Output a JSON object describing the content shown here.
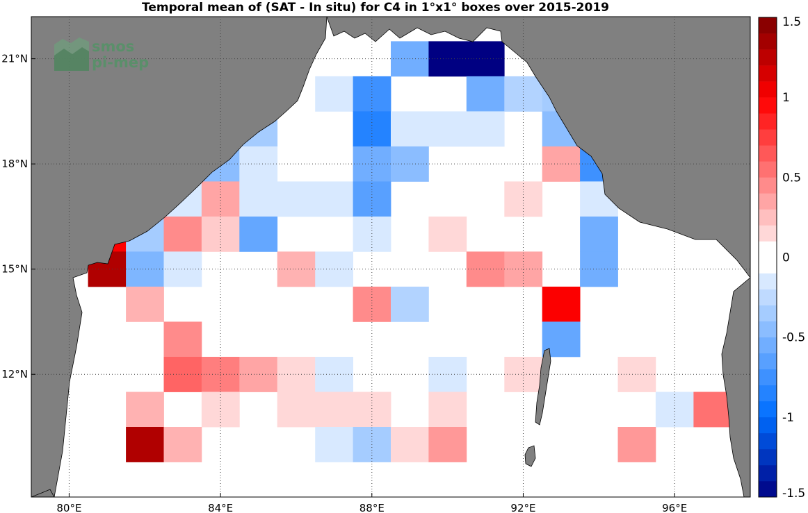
{
  "title": "Temporal mean of (SAT - In situ) for C4 in 1°x1° boxes over 2015-2019",
  "logo": {
    "line1": "smos",
    "line2": "pi-mep",
    "color": "#5a8f6a"
  },
  "colors": {
    "land": "#808080",
    "ocean": "#ffffff",
    "grid": "#444444"
  },
  "chart_data": {
    "type": "heatmap",
    "title": "Temporal mean of (SAT - In situ) for C4 in 1°x1° boxes over 2015-2019",
    "x_range": [
      79,
      98
    ],
    "y_range": [
      8.5,
      22.2
    ],
    "x_ticks": [
      {
        "value": 80,
        "label": "80°E"
      },
      {
        "value": 84,
        "label": "84°E"
      },
      {
        "value": 88,
        "label": "88°E"
      },
      {
        "value": 92,
        "label": "92°E"
      },
      {
        "value": 96,
        "label": "96°E"
      }
    ],
    "y_ticks": [
      {
        "value": 21,
        "label": "21°N"
      },
      {
        "value": 18,
        "label": "18°N"
      },
      {
        "value": 15,
        "label": "15°N"
      },
      {
        "value": 12,
        "label": "12°N"
      }
    ],
    "grid": true,
    "colorbar": {
      "min": -1.5,
      "max": 1.5,
      "levels": 30,
      "ticks": [
        {
          "value": 1.5,
          "label": "1.5"
        },
        {
          "value": 1,
          "label": "1"
        },
        {
          "value": 0.5,
          "label": "0.5"
        },
        {
          "value": 0,
          "label": "0"
        },
        {
          "value": -0.5,
          "label": "-0.5"
        },
        {
          "value": -1,
          "label": "-1"
        },
        {
          "value": -1.5,
          "label": "-1.5"
        }
      ]
    },
    "cells": [
      {
        "lon": 89,
        "lat": 21,
        "value": -0.55
      },
      {
        "lon": 90,
        "lat": 21,
        "value": -1.5
      },
      {
        "lon": 91,
        "lat": 21,
        "value": -1.5
      },
      {
        "lon": 87,
        "lat": 20,
        "value": -0.15
      },
      {
        "lon": 88,
        "lat": 20,
        "value": -0.75
      },
      {
        "lon": 91,
        "lat": 20,
        "value": -0.55
      },
      {
        "lon": 92,
        "lat": 20,
        "value": -0.3
      },
      {
        "lon": 93,
        "lat": 20,
        "value": -0.35
      },
      {
        "lon": 85,
        "lat": 19,
        "value": -0.35
      },
      {
        "lon": 88,
        "lat": 19,
        "value": -0.85
      },
      {
        "lon": 89,
        "lat": 19,
        "value": -0.15
      },
      {
        "lon": 90,
        "lat": 19,
        "value": -0.15
      },
      {
        "lon": 91,
        "lat": 19,
        "value": -0.15
      },
      {
        "lon": 93,
        "lat": 19,
        "value": -0.45
      },
      {
        "lon": 94,
        "lat": 19,
        "value": -0.25
      },
      {
        "lon": 84,
        "lat": 18,
        "value": -0.45
      },
      {
        "lon": 85,
        "lat": 18,
        "value": -0.15
      },
      {
        "lon": 88,
        "lat": 18,
        "value": -0.55
      },
      {
        "lon": 89,
        "lat": 18,
        "value": -0.45
      },
      {
        "lon": 93,
        "lat": 18,
        "value": 0.35
      },
      {
        "lon": 94,
        "lat": 18,
        "value": -0.75
      },
      {
        "lon": 83,
        "lat": 17,
        "value": -0.15
      },
      {
        "lon": 84,
        "lat": 17,
        "value": 0.35
      },
      {
        "lon": 85,
        "lat": 17,
        "value": -0.15
      },
      {
        "lon": 86,
        "lat": 17,
        "value": -0.15
      },
      {
        "lon": 87,
        "lat": 17,
        "value": -0.15
      },
      {
        "lon": 88,
        "lat": 17,
        "value": -0.65
      },
      {
        "lon": 92,
        "lat": 17,
        "value": 0.15
      },
      {
        "lon": 94,
        "lat": 17,
        "value": -0.15
      },
      {
        "lon": 81,
        "lat": 16,
        "value": 1.0
      },
      {
        "lon": 82,
        "lat": 16,
        "value": -0.35
      },
      {
        "lon": 83,
        "lat": 16,
        "value": 0.45
      },
      {
        "lon": 84,
        "lat": 16,
        "value": 0.2
      },
      {
        "lon": 85,
        "lat": 16,
        "value": -0.6
      },
      {
        "lon": 88,
        "lat": 16,
        "value": -0.15
      },
      {
        "lon": 90,
        "lat": 16,
        "value": 0.15
      },
      {
        "lon": 94,
        "lat": 16,
        "value": -0.55
      },
      {
        "lon": 81,
        "lat": 15,
        "value": 1.3
      },
      {
        "lon": 82,
        "lat": 15,
        "value": -0.5
      },
      {
        "lon": 83,
        "lat": 15,
        "value": -0.15
      },
      {
        "lon": 86,
        "lat": 15,
        "value": 0.3
      },
      {
        "lon": 87,
        "lat": 15,
        "value": -0.15
      },
      {
        "lon": 91,
        "lat": 15,
        "value": 0.45
      },
      {
        "lon": 92,
        "lat": 15,
        "value": 0.35
      },
      {
        "lon": 94,
        "lat": 15,
        "value": -0.55
      },
      {
        "lon": 82,
        "lat": 14,
        "value": 0.3
      },
      {
        "lon": 88,
        "lat": 14,
        "value": 0.45
      },
      {
        "lon": 89,
        "lat": 14,
        "value": -0.3
      },
      {
        "lon": 93,
        "lat": 14,
        "value": 1.0
      },
      {
        "lon": 83,
        "lat": 13,
        "value": 0.45
      },
      {
        "lon": 93,
        "lat": 13,
        "value": -0.6
      },
      {
        "lon": 83,
        "lat": 12,
        "value": 0.6
      },
      {
        "lon": 84,
        "lat": 12,
        "value": 0.5
      },
      {
        "lon": 85,
        "lat": 12,
        "value": 0.35
      },
      {
        "lon": 86,
        "lat": 12,
        "value": 0.15
      },
      {
        "lon": 87,
        "lat": 12,
        "value": -0.15
      },
      {
        "lon": 90,
        "lat": 12,
        "value": -0.15
      },
      {
        "lon": 92,
        "lat": 12,
        "value": 0.15
      },
      {
        "lon": 95,
        "lat": 12,
        "value": 0.15
      },
      {
        "lon": 82,
        "lat": 11,
        "value": 0.3
      },
      {
        "lon": 84,
        "lat": 11,
        "value": 0.15
      },
      {
        "lon": 86,
        "lat": 11,
        "value": 0.15
      },
      {
        "lon": 87,
        "lat": 11,
        "value": 0.15
      },
      {
        "lon": 88,
        "lat": 11,
        "value": 0.15
      },
      {
        "lon": 90,
        "lat": 11,
        "value": 0.15
      },
      {
        "lon": 96,
        "lat": 11,
        "value": -0.15
      },
      {
        "lon": 97,
        "lat": 11,
        "value": 0.55
      },
      {
        "lon": 82,
        "lat": 10,
        "value": 1.3
      },
      {
        "lon": 83,
        "lat": 10,
        "value": 0.3
      },
      {
        "lon": 87,
        "lat": 10,
        "value": -0.15
      },
      {
        "lon": 88,
        "lat": 10,
        "value": -0.35
      },
      {
        "lon": 89,
        "lat": 10,
        "value": 0.15
      },
      {
        "lon": 90,
        "lat": 10,
        "value": 0.4
      },
      {
        "lon": 95,
        "lat": 10,
        "value": 0.4
      }
    ]
  }
}
